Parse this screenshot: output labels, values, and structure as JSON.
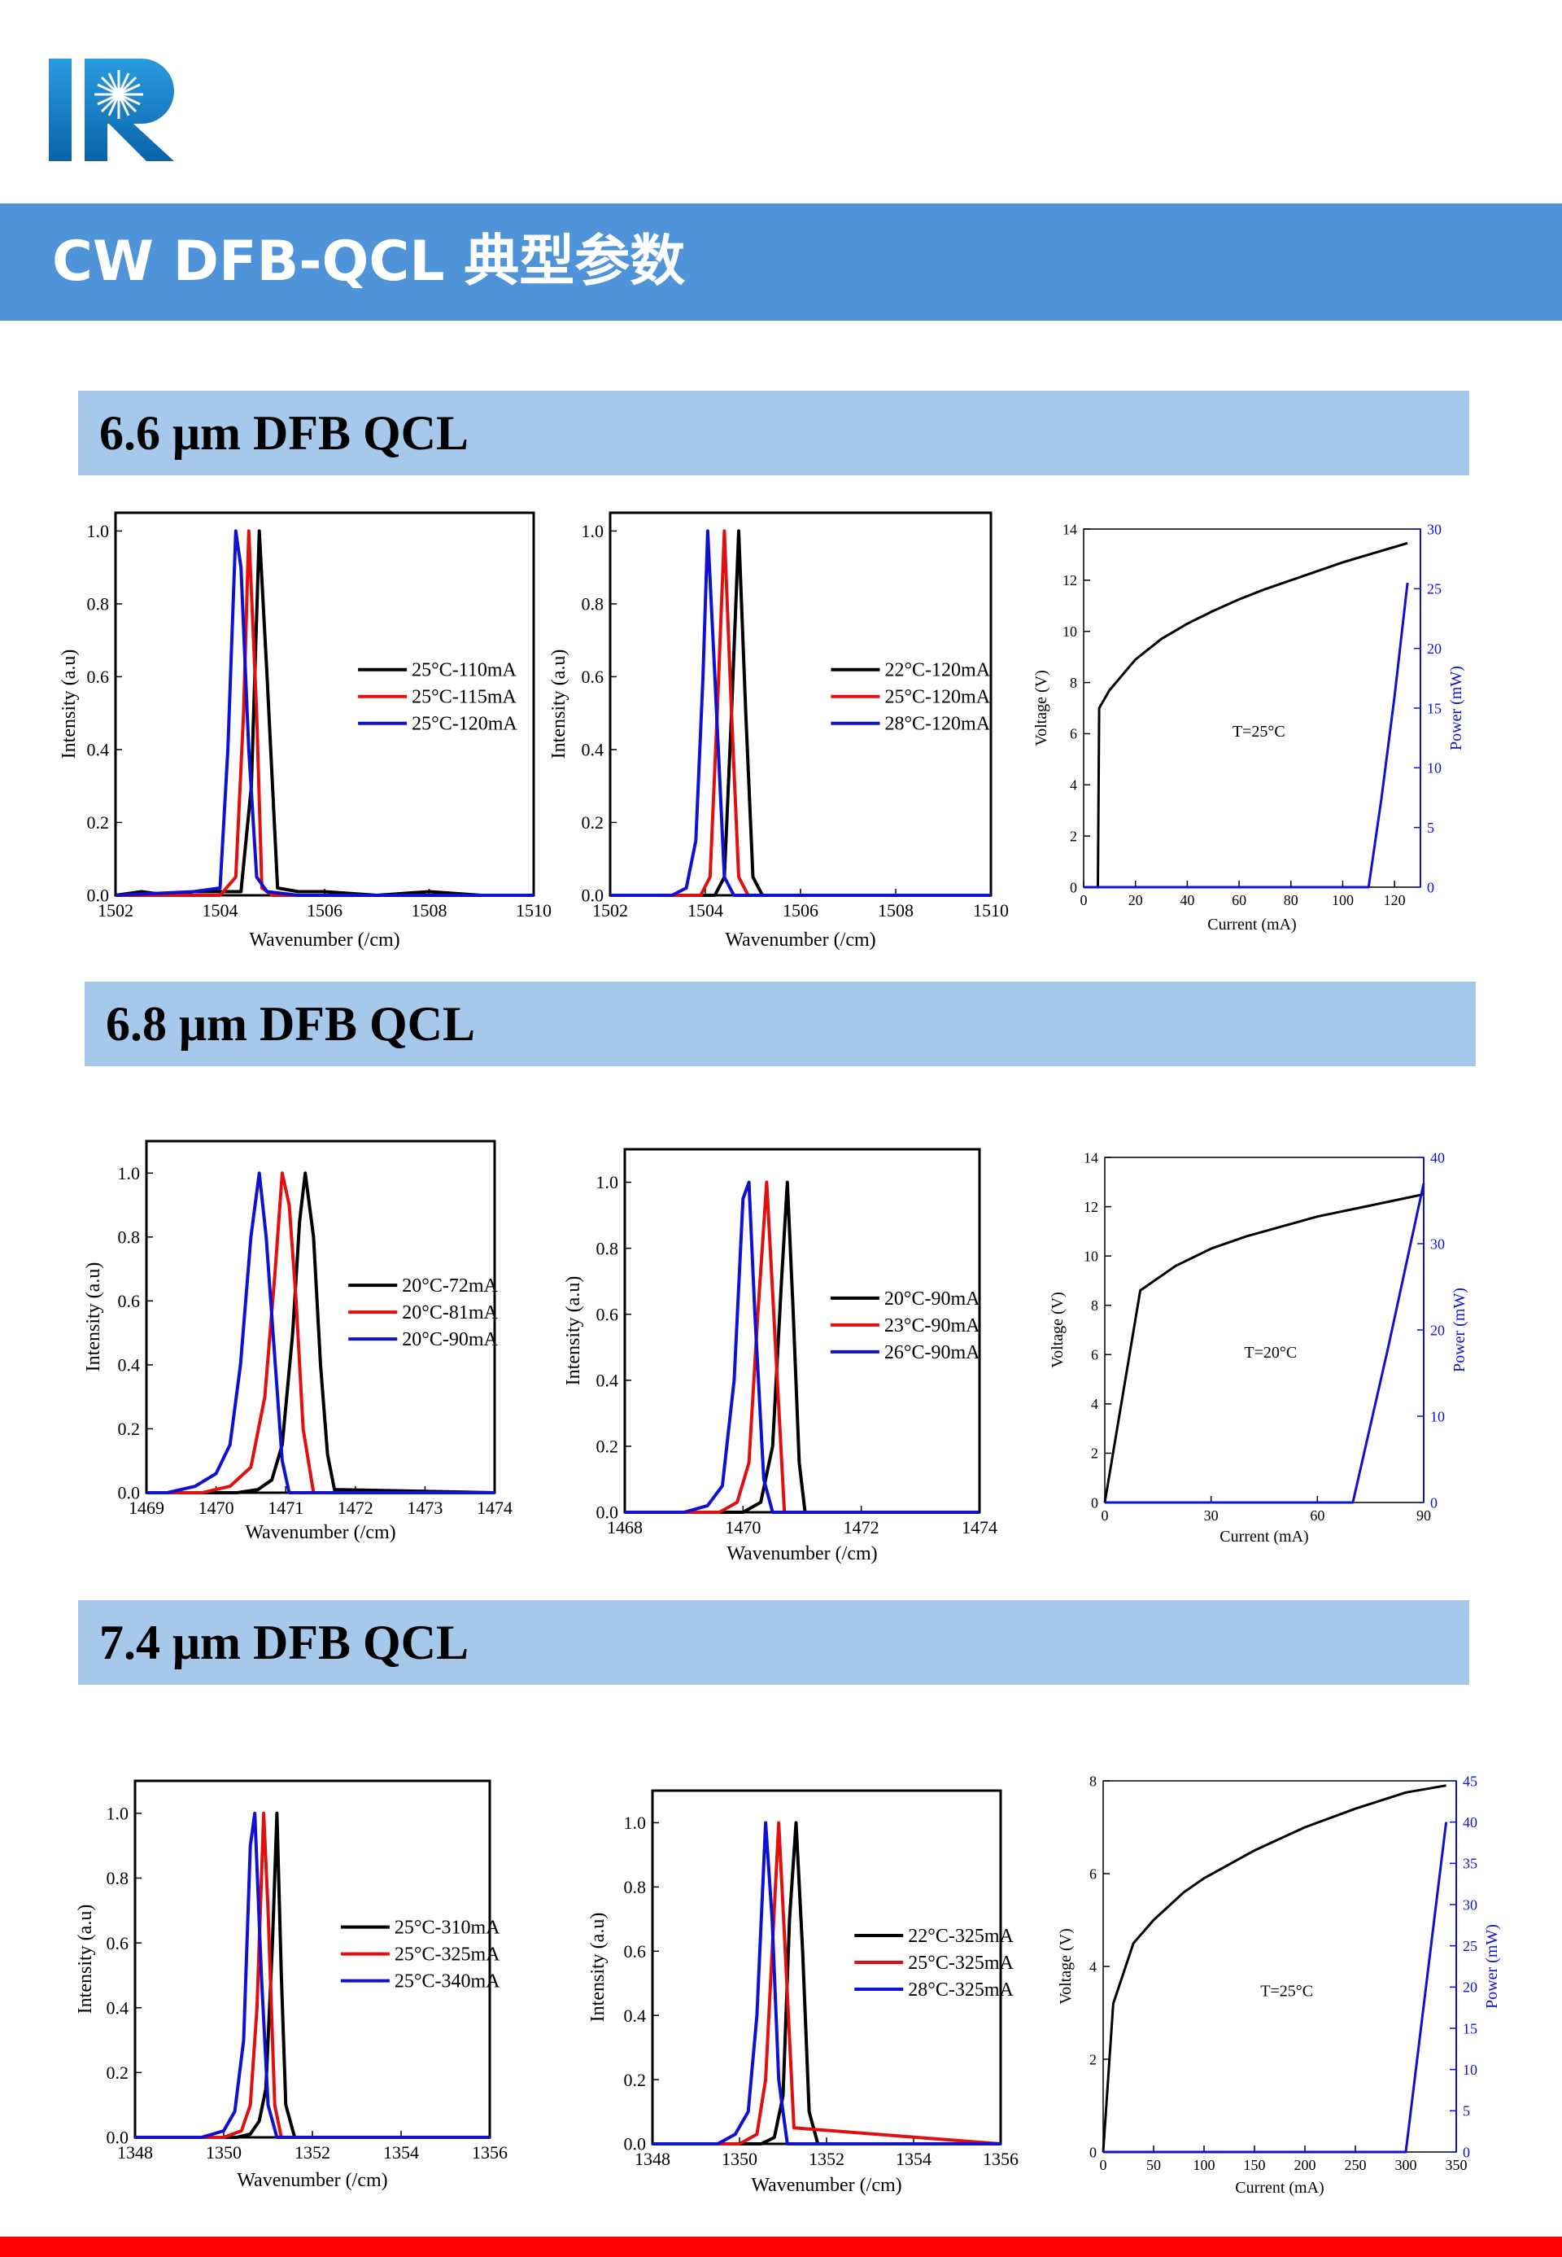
{
  "header": {
    "banner_title": "CW DFB-QCL 典型参数"
  },
  "colors": {
    "banner": "#4f94d8",
    "section": "#a6c8eb",
    "logo": "#1a7fc4",
    "bottom_bar": "#ff0000",
    "black": "#000000",
    "red": "#e01010",
    "blue": "#1010d0"
  },
  "logo": {
    "icon": "ir-logo-icon"
  },
  "sections": [
    {
      "title": "6.6 μm DFB QCL"
    },
    {
      "title": "6.8 μm DFB QCL"
    },
    {
      "title": "7.4 μm DFB QCL"
    }
  ],
  "chart_data": [
    {
      "type": "line",
      "xlabel": "Wavenumber (/cm)",
      "ylabel": "Intensity (a.u)",
      "xlim": [
        1502,
        1510
      ],
      "ylim": [
        0,
        1.05
      ],
      "xticks": [
        1502,
        1504,
        1506,
        1508,
        1510
      ],
      "xticklabels": [
        "1502",
        "1504",
        "1506",
        "1508",
        "1510"
      ],
      "yticks": [
        0,
        0.2,
        0.4,
        0.6,
        0.8,
        1.0
      ],
      "yticklabels": [
        "0.0",
        "0.2",
        "0.4",
        "0.6",
        "0.8",
        "1.0"
      ],
      "legend": "center-right",
      "series": [
        {
          "name": "25°C-110mA",
          "color": "black",
          "x": [
            1502,
            1502.5,
            1503,
            1503.5,
            1504,
            1504.4,
            1504.6,
            1504.75,
            1504.9,
            1505.1,
            1505.5,
            1506,
            1507,
            1508,
            1509,
            1510
          ],
          "y": [
            0,
            0.01,
            0,
            0.01,
            0.01,
            0.01,
            0.3,
            1.0,
            0.6,
            0.02,
            0.01,
            0.01,
            0,
            0.01,
            0,
            0
          ]
        },
        {
          "name": "25°C-115mA",
          "color": "red",
          "x": [
            1502,
            1504,
            1504.3,
            1504.45,
            1504.55,
            1504.7,
            1504.8,
            1505,
            1510
          ],
          "y": [
            0,
            0,
            0.05,
            0.5,
            1.0,
            0.5,
            0.02,
            0,
            0
          ]
        },
        {
          "name": "25°C-120mA",
          "color": "blue",
          "x": [
            1502,
            1503.5,
            1504,
            1504.15,
            1504.3,
            1504.4,
            1504.55,
            1504.7,
            1504.9,
            1505.5,
            1510
          ],
          "y": [
            0,
            0.01,
            0.02,
            0.4,
            1.0,
            0.9,
            0.4,
            0.05,
            0.01,
            0,
            0
          ]
        }
      ]
    },
    {
      "type": "line",
      "xlabel": "Wavenumber (/cm)",
      "ylabel": "Intensity (a.u)",
      "xlim": [
        1502,
        1510
      ],
      "ylim": [
        0,
        1.05
      ],
      "xticks": [
        1502,
        1504,
        1506,
        1508,
        1510
      ],
      "xticklabels": [
        "1502",
        "1504",
        "1506",
        "1508",
        "1510"
      ],
      "yticks": [
        0,
        0.2,
        0.4,
        0.6,
        0.8,
        1.0
      ],
      "yticklabels": [
        "0.0",
        "0.2",
        "0.4",
        "0.6",
        "0.8",
        "1.0"
      ],
      "legend": "center-right",
      "series": [
        {
          "name": "22°C-120mA",
          "color": "black",
          "x": [
            1502,
            1504.2,
            1504.4,
            1504.55,
            1504.7,
            1504.85,
            1505,
            1505.2,
            1510
          ],
          "y": [
            0,
            0,
            0.05,
            0.5,
            1.0,
            0.5,
            0.05,
            0,
            0
          ]
        },
        {
          "name": "25°C-120mA",
          "color": "red",
          "x": [
            1502,
            1503.9,
            1504.1,
            1504.25,
            1504.4,
            1504.55,
            1504.7,
            1504.9,
            1510
          ],
          "y": [
            0,
            0,
            0.05,
            0.5,
            1.0,
            0.5,
            0.05,
            0,
            0
          ]
        },
        {
          "name": "28°C-120mA",
          "color": "blue",
          "x": [
            1502,
            1503.3,
            1503.6,
            1503.8,
            1503.95,
            1504.05,
            1504.2,
            1504.4,
            1504.6,
            1510
          ],
          "y": [
            0,
            0,
            0.02,
            0.15,
            0.6,
            1.0,
            0.6,
            0.05,
            0,
            0
          ]
        }
      ]
    },
    {
      "type": "line",
      "xlabel": "Current (mA)",
      "ylabel": "Voltage (V)",
      "y2label": "Power (mW)",
      "annotation": "T=25°C",
      "xlim": [
        0,
        130
      ],
      "ylim": [
        0,
        14
      ],
      "y2lim": [
        0,
        30
      ],
      "xticks": [
        0,
        20,
        40,
        60,
        80,
        100,
        120
      ],
      "xticklabels": [
        "0",
        "20",
        "40",
        "60",
        "80",
        "100",
        "120"
      ],
      "yticks": [
        0,
        2,
        4,
        6,
        8,
        10,
        12,
        14
      ],
      "yticklabels": [
        "0",
        "2",
        "4",
        "6",
        "8",
        "10",
        "12",
        "14"
      ],
      "y2ticks": [
        0,
        5,
        10,
        15,
        20,
        25,
        30
      ],
      "y2ticklabels": [
        "0",
        "5",
        "10",
        "15",
        "20",
        "25",
        "30"
      ],
      "series": [
        {
          "name": "",
          "axis": "left",
          "color": "black",
          "x": [
            5.5,
            6,
            10,
            20,
            30,
            40,
            50,
            60,
            70,
            80,
            90,
            100,
            110,
            120,
            125
          ],
          "y": [
            0,
            7.0,
            7.7,
            8.9,
            9.7,
            10.3,
            10.8,
            11.25,
            11.65,
            12.0,
            12.35,
            12.7,
            13.0,
            13.3,
            13.45
          ]
        },
        {
          "name": "",
          "axis": "right",
          "color": "blue",
          "x": [
            0,
            110,
            115,
            120,
            125
          ],
          "y": [
            0,
            0,
            7.5,
            16,
            25.5
          ]
        }
      ]
    },
    {
      "type": "line",
      "xlabel": "Wavenumber (/cm)",
      "ylabel": "Intensity (a.u)",
      "xlim": [
        1469,
        1474
      ],
      "ylim": [
        0,
        1.1
      ],
      "xticks": [
        1469,
        1470,
        1471,
        1472,
        1473,
        1474
      ],
      "xticklabels": [
        "1469",
        "1470",
        "1471",
        "1472",
        "1473",
        "1474"
      ],
      "yticks": [
        0,
        0.2,
        0.4,
        0.6,
        0.8,
        1.0
      ],
      "yticklabels": [
        "0.0",
        "0.2",
        "0.4",
        "0.6",
        "0.8",
        "1.0"
      ],
      "legend": "center-right",
      "series": [
        {
          "name": "20°C-72mA",
          "color": "black",
          "x": [
            1469,
            1470.3,
            1470.6,
            1470.8,
            1470.95,
            1471.1,
            1471.2,
            1471.28,
            1471.4,
            1471.5,
            1471.6,
            1471.7,
            1474
          ],
          "y": [
            0,
            0,
            0.01,
            0.04,
            0.15,
            0.5,
            0.85,
            1.0,
            0.8,
            0.4,
            0.12,
            0.01,
            0
          ]
        },
        {
          "name": "20°C-81mA",
          "color": "red",
          "x": [
            1469,
            1469.8,
            1470.2,
            1470.5,
            1470.7,
            1470.85,
            1470.95,
            1471.05,
            1471.15,
            1471.25,
            1471.4,
            1474
          ],
          "y": [
            0,
            0,
            0.02,
            0.08,
            0.3,
            0.7,
            1.0,
            0.9,
            0.6,
            0.2,
            0,
            0
          ]
        },
        {
          "name": "20°C-90mA",
          "color": "blue",
          "x": [
            1469,
            1469.3,
            1469.7,
            1470,
            1470.2,
            1470.35,
            1470.5,
            1470.62,
            1470.72,
            1470.85,
            1470.95,
            1471.05,
            1474
          ],
          "y": [
            0,
            0,
            0.02,
            0.06,
            0.15,
            0.4,
            0.8,
            1.0,
            0.8,
            0.4,
            0.1,
            0,
            0
          ]
        }
      ]
    },
    {
      "type": "line",
      "xlabel": "Wavenumber (/cm)",
      "ylabel": "Intensity (a.u)",
      "xlim": [
        1468,
        1474
      ],
      "ylim": [
        0,
        1.1
      ],
      "xticks": [
        1468,
        1470,
        1472,
        1474
      ],
      "xticklabels": [
        "1468",
        "1470",
        "1472",
        "1474"
      ],
      "yticks": [
        0,
        0.2,
        0.4,
        0.6,
        0.8,
        1.0
      ],
      "yticklabels": [
        "0.0",
        "0.2",
        "0.4",
        "0.6",
        "0.8",
        "1.0"
      ],
      "legend": "center-right",
      "series": [
        {
          "name": "20°C-90mA",
          "color": "black",
          "x": [
            1468,
            1470,
            1470.3,
            1470.5,
            1470.65,
            1470.75,
            1470.85,
            1470.95,
            1471.05,
            1474
          ],
          "y": [
            0,
            0,
            0.03,
            0.2,
            0.7,
            1.0,
            0.6,
            0.15,
            0,
            0
          ]
        },
        {
          "name": "23°C-90mA",
          "color": "red",
          "x": [
            1468,
            1469.6,
            1469.9,
            1470.1,
            1470.25,
            1470.4,
            1470.55,
            1470.7,
            1474
          ],
          "y": [
            0,
            0,
            0.03,
            0.15,
            0.6,
            1.0,
            0.5,
            0,
            0
          ]
        },
        {
          "name": "26°C-90mA",
          "color": "blue",
          "x": [
            1468,
            1469,
            1469.4,
            1469.65,
            1469.85,
            1470,
            1470.1,
            1470.2,
            1470.35,
            1470.5,
            1474
          ],
          "y": [
            0,
            0,
            0.02,
            0.08,
            0.4,
            0.95,
            1.0,
            0.6,
            0.1,
            0,
            0
          ]
        }
      ]
    },
    {
      "type": "line",
      "xlabel": "Current (mA)",
      "ylabel": "Voltage (V)",
      "y2label": "Power (mW)",
      "annotation": "T=20°C",
      "xlim": [
        0,
        90
      ],
      "ylim": [
        0,
        14
      ],
      "y2lim": [
        0,
        40
      ],
      "xticks": [
        0,
        30,
        60,
        90
      ],
      "xticklabels": [
        "0",
        "30",
        "60",
        "90"
      ],
      "yticks": [
        0,
        2,
        4,
        6,
        8,
        10,
        12,
        14
      ],
      "yticklabels": [
        "0",
        "2",
        "4",
        "6",
        "8",
        "10",
        "12",
        "14"
      ],
      "y2ticks": [
        0,
        10,
        20,
        30,
        40
      ],
      "y2ticklabels": [
        "0",
        "10",
        "20",
        "30",
        "40"
      ],
      "series": [
        {
          "name": "",
          "axis": "left",
          "color": "black",
          "x": [
            0,
            10,
            20,
            30,
            40,
            50,
            60,
            70,
            80,
            90
          ],
          "y": [
            0,
            8.6,
            9.6,
            10.3,
            10.8,
            11.2,
            11.6,
            11.9,
            12.2,
            12.5
          ]
        },
        {
          "name": "",
          "axis": "right",
          "color": "blue",
          "x": [
            0,
            70,
            80,
            90
          ],
          "y": [
            0,
            0,
            18,
            37
          ]
        }
      ]
    },
    {
      "type": "line",
      "xlabel": "Wavenumber (/cm)",
      "ylabel": "Intensity (a.u)",
      "xlim": [
        1348,
        1356
      ],
      "ylim": [
        0,
        1.1
      ],
      "xticks": [
        1348,
        1350,
        1352,
        1354,
        1356
      ],
      "xticklabels": [
        "1348",
        "1350",
        "1352",
        "1354",
        "1356"
      ],
      "yticks": [
        0,
        0.2,
        0.4,
        0.6,
        0.8,
        1.0
      ],
      "yticklabels": [
        "0.0",
        "0.2",
        "0.4",
        "0.6",
        "0.8",
        "1.0"
      ],
      "legend": "center-right",
      "series": [
        {
          "name": "25°C-310mA",
          "color": "black",
          "x": [
            1348,
            1350.3,
            1350.6,
            1350.8,
            1350.95,
            1351.1,
            1351.2,
            1351.3,
            1351.4,
            1351.6,
            1356
          ],
          "y": [
            0,
            0,
            0.01,
            0.05,
            0.15,
            0.6,
            1.0,
            0.5,
            0.1,
            0,
            0
          ]
        },
        {
          "name": "25°C-325mA",
          "color": "red",
          "x": [
            1348,
            1350,
            1350.4,
            1350.6,
            1350.75,
            1350.9,
            1351,
            1351.15,
            1351.3,
            1356
          ],
          "y": [
            0,
            0,
            0.02,
            0.1,
            0.4,
            1.0,
            0.7,
            0.1,
            0,
            0
          ]
        },
        {
          "name": "25°C-340mA",
          "color": "blue",
          "x": [
            1348,
            1349.5,
            1350,
            1350.25,
            1350.45,
            1350.6,
            1350.7,
            1350.85,
            1351,
            1351.2,
            1356
          ],
          "y": [
            0,
            0,
            0.02,
            0.08,
            0.3,
            0.9,
            1.0,
            0.5,
            0.1,
            0,
            0
          ]
        }
      ]
    },
    {
      "type": "line",
      "xlabel": "Wavenumber (/cm)",
      "ylabel": "Intensity (a.u)",
      "xlim": [
        1348,
        1356
      ],
      "ylim": [
        0,
        1.1
      ],
      "xticks": [
        1348,
        1350,
        1352,
        1354,
        1356
      ],
      "xticklabels": [
        "1348",
        "1350",
        "1352",
        "1354",
        "1356"
      ],
      "yticks": [
        0,
        0.2,
        0.4,
        0.6,
        0.8,
        1.0
      ],
      "yticklabels": [
        "0.0",
        "0.2",
        "0.4",
        "0.6",
        "0.8",
        "1.0"
      ],
      "legend": "center-right",
      "series": [
        {
          "name": "22°C-325mA",
          "color": "black",
          "x": [
            1348,
            1350.5,
            1350.8,
            1351,
            1351.15,
            1351.3,
            1351.45,
            1351.6,
            1351.8,
            1356
          ],
          "y": [
            0,
            0,
            0.02,
            0.15,
            0.7,
            1.0,
            0.6,
            0.1,
            0,
            0
          ]
        },
        {
          "name": "25°C-325mA",
          "color": "red",
          "x": [
            1348,
            1350,
            1350.4,
            1350.6,
            1350.75,
            1350.9,
            1351.05,
            1351.25,
            1356
          ],
          "y": [
            0,
            0,
            0.03,
            0.2,
            0.6,
            1.0,
            0.6,
            0.05,
            0
          ]
        },
        {
          "name": "28°C-325mA",
          "color": "blue",
          "x": [
            1348,
            1349.5,
            1349.9,
            1350.2,
            1350.4,
            1350.6,
            1350.75,
            1350.9,
            1351.1,
            1356
          ],
          "y": [
            0,
            0,
            0.03,
            0.1,
            0.4,
            1.0,
            0.7,
            0.2,
            0,
            0
          ]
        }
      ]
    },
    {
      "type": "line",
      "xlabel": "Current (mA)",
      "ylabel": "Voltage (V)",
      "y2label": "Power (mW)",
      "annotation": "T=25°C",
      "xlim": [
        0,
        350
      ],
      "ylim": [
        0,
        8
      ],
      "y2lim": [
        0,
        45
      ],
      "xticks": [
        0,
        50,
        100,
        150,
        200,
        250,
        300,
        350
      ],
      "xticklabels": [
        "0",
        "50",
        "100",
        "150",
        "200",
        "250",
        "300",
        "350"
      ],
      "yticks": [
        0,
        2,
        4,
        6,
        8
      ],
      "yticklabels": [
        "0",
        "2",
        "4",
        "6",
        "8"
      ],
      "y2ticks": [
        0,
        5,
        10,
        15,
        20,
        25,
        30,
        35,
        40,
        45
      ],
      "y2ticklabels": [
        "0",
        "5",
        "10",
        "15",
        "20",
        "25",
        "30",
        "35",
        "40",
        "45"
      ],
      "series": [
        {
          "name": "",
          "axis": "left",
          "color": "black",
          "x": [
            0,
            10,
            30,
            50,
            80,
            100,
            150,
            200,
            250,
            300,
            340
          ],
          "y": [
            0,
            3.2,
            4.5,
            5.0,
            5.6,
            5.9,
            6.5,
            7.0,
            7.4,
            7.75,
            7.9
          ]
        },
        {
          "name": "",
          "axis": "right",
          "color": "blue",
          "x": [
            0,
            300,
            320,
            340
          ],
          "y": [
            0,
            0,
            20,
            40
          ]
        }
      ]
    }
  ]
}
